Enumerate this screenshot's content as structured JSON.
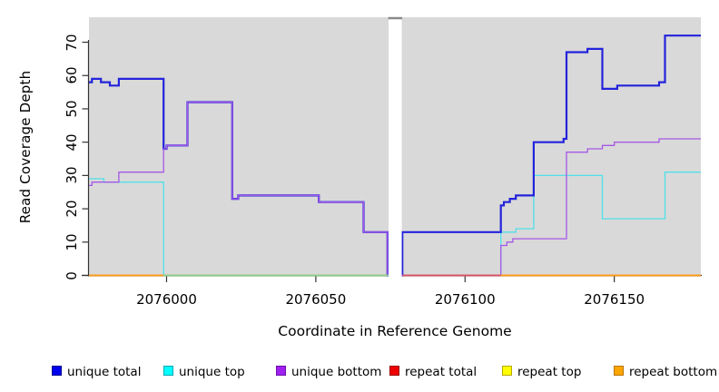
{
  "axes": {
    "x": {
      "label": "Coordinate in Reference Genome",
      "ticks": [
        2076000,
        2076050,
        2076100,
        2076150
      ],
      "range": [
        2075974,
        2076179
      ]
    },
    "y": {
      "label": "Read Coverage Depth",
      "ticks": [
        0,
        10,
        20,
        30,
        40,
        50,
        60,
        70
      ],
      "range": [
        0,
        72
      ]
    }
  },
  "legend": {
    "items": [
      {
        "label": "unique total",
        "fill": "#0000EE",
        "border": "#000090"
      },
      {
        "label": "unique top",
        "fill": "#00FFFF",
        "border": "#00A8B4"
      },
      {
        "label": "unique bottom",
        "fill": "#A020F0",
        "border": "#6A0DAD"
      },
      {
        "label": "repeat total",
        "fill": "#EE0000",
        "border": "#990000"
      },
      {
        "label": "repeat top",
        "fill": "#FFFF00",
        "border": "#B8A800"
      },
      {
        "label": "repeat bottom",
        "fill": "#FFA500",
        "border": "#B87400"
      }
    ]
  },
  "chart_data": {
    "type": "line",
    "subtype": "step",
    "title": "",
    "xlabel": "Coordinate in Reference Genome",
    "ylabel": "Read Coverage Depth",
    "xlim": [
      2075974,
      2076179
    ],
    "ylim": [
      0,
      72
    ],
    "grid": false,
    "panel_background": "#d9d9d9",
    "gap_region": {
      "from": 2076074.4,
      "to": 2076078.8,
      "color": "#ffffff",
      "cap_color": "#8a8a8a"
    },
    "series": [
      {
        "name": "repeat total",
        "color": "#EE0000",
        "width": 1.3,
        "steps": [
          [
            2075974,
            0
          ]
        ]
      },
      {
        "name": "repeat top",
        "color": "#FFFF00",
        "width": 1.3,
        "steps": [
          [
            2075974,
            0
          ]
        ]
      },
      {
        "name": "repeat bottom",
        "color": "#FF9C1A",
        "width": 1.6,
        "steps": [
          [
            2075974,
            0
          ]
        ]
      },
      {
        "name": "unique top",
        "color": "#4FE0E8",
        "width": 1.3,
        "steps": [
          [
            2075974,
            29
          ],
          [
            2075979,
            28
          ],
          [
            2075999,
            0
          ],
          [
            2076112,
            13
          ],
          [
            2076117,
            14
          ],
          [
            2076123,
            30
          ],
          [
            2076146,
            17
          ],
          [
            2076167,
            31
          ]
        ]
      },
      {
        "name": "unique total",
        "color": "#2323DC",
        "width": 2.2,
        "steps": [
          [
            2075974,
            58
          ],
          [
            2075975,
            59
          ],
          [
            2075978,
            58
          ],
          [
            2075981,
            57
          ],
          [
            2075984,
            59
          ],
          [
            2075999,
            38
          ],
          [
            2076000,
            39
          ],
          [
            2076007,
            52
          ],
          [
            2076022,
            23
          ],
          [
            2076024,
            24
          ],
          [
            2076051,
            22
          ],
          [
            2076066,
            13
          ],
          [
            2076074,
            0
          ],
          [
            2076079,
            13
          ],
          [
            2076112,
            21
          ],
          [
            2076113,
            22
          ],
          [
            2076115,
            23
          ],
          [
            2076117,
            24
          ],
          [
            2076123,
            40
          ],
          [
            2076133,
            41
          ],
          [
            2076134,
            67
          ],
          [
            2076141,
            68
          ],
          [
            2076146,
            56
          ],
          [
            2076151,
            57
          ],
          [
            2076165,
            58
          ],
          [
            2076167,
            72
          ]
        ]
      },
      {
        "name": "unique bottom",
        "color": "#A558E6",
        "width": 1.3,
        "steps": [
          [
            2075974,
            27
          ],
          [
            2075975,
            28
          ],
          [
            2075984,
            31
          ],
          [
            2075999,
            38
          ],
          [
            2076000,
            39
          ],
          [
            2076007,
            52
          ],
          [
            2076022,
            23
          ],
          [
            2076024,
            24
          ],
          [
            2076051,
            22
          ],
          [
            2076066,
            13
          ],
          [
            2076074,
            0
          ],
          [
            2076112,
            9
          ],
          [
            2076114,
            10
          ],
          [
            2076116,
            11
          ],
          [
            2076134,
            37
          ],
          [
            2076141,
            38
          ],
          [
            2076146,
            39
          ],
          [
            2076150,
            40
          ],
          [
            2076165,
            41
          ]
        ]
      }
    ],
    "baseline_overlap_segments": [
      {
        "from": 2075974,
        "to": 2075999,
        "color": "#FF9C1A"
      },
      {
        "from": 2075999,
        "to": 2076075,
        "color": "#8FCE8F"
      },
      {
        "from": 2076079,
        "to": 2076112,
        "color": "#DC5066"
      },
      {
        "from": 2076112,
        "to": 2076179,
        "color": "#FF9C1A"
      }
    ]
  }
}
